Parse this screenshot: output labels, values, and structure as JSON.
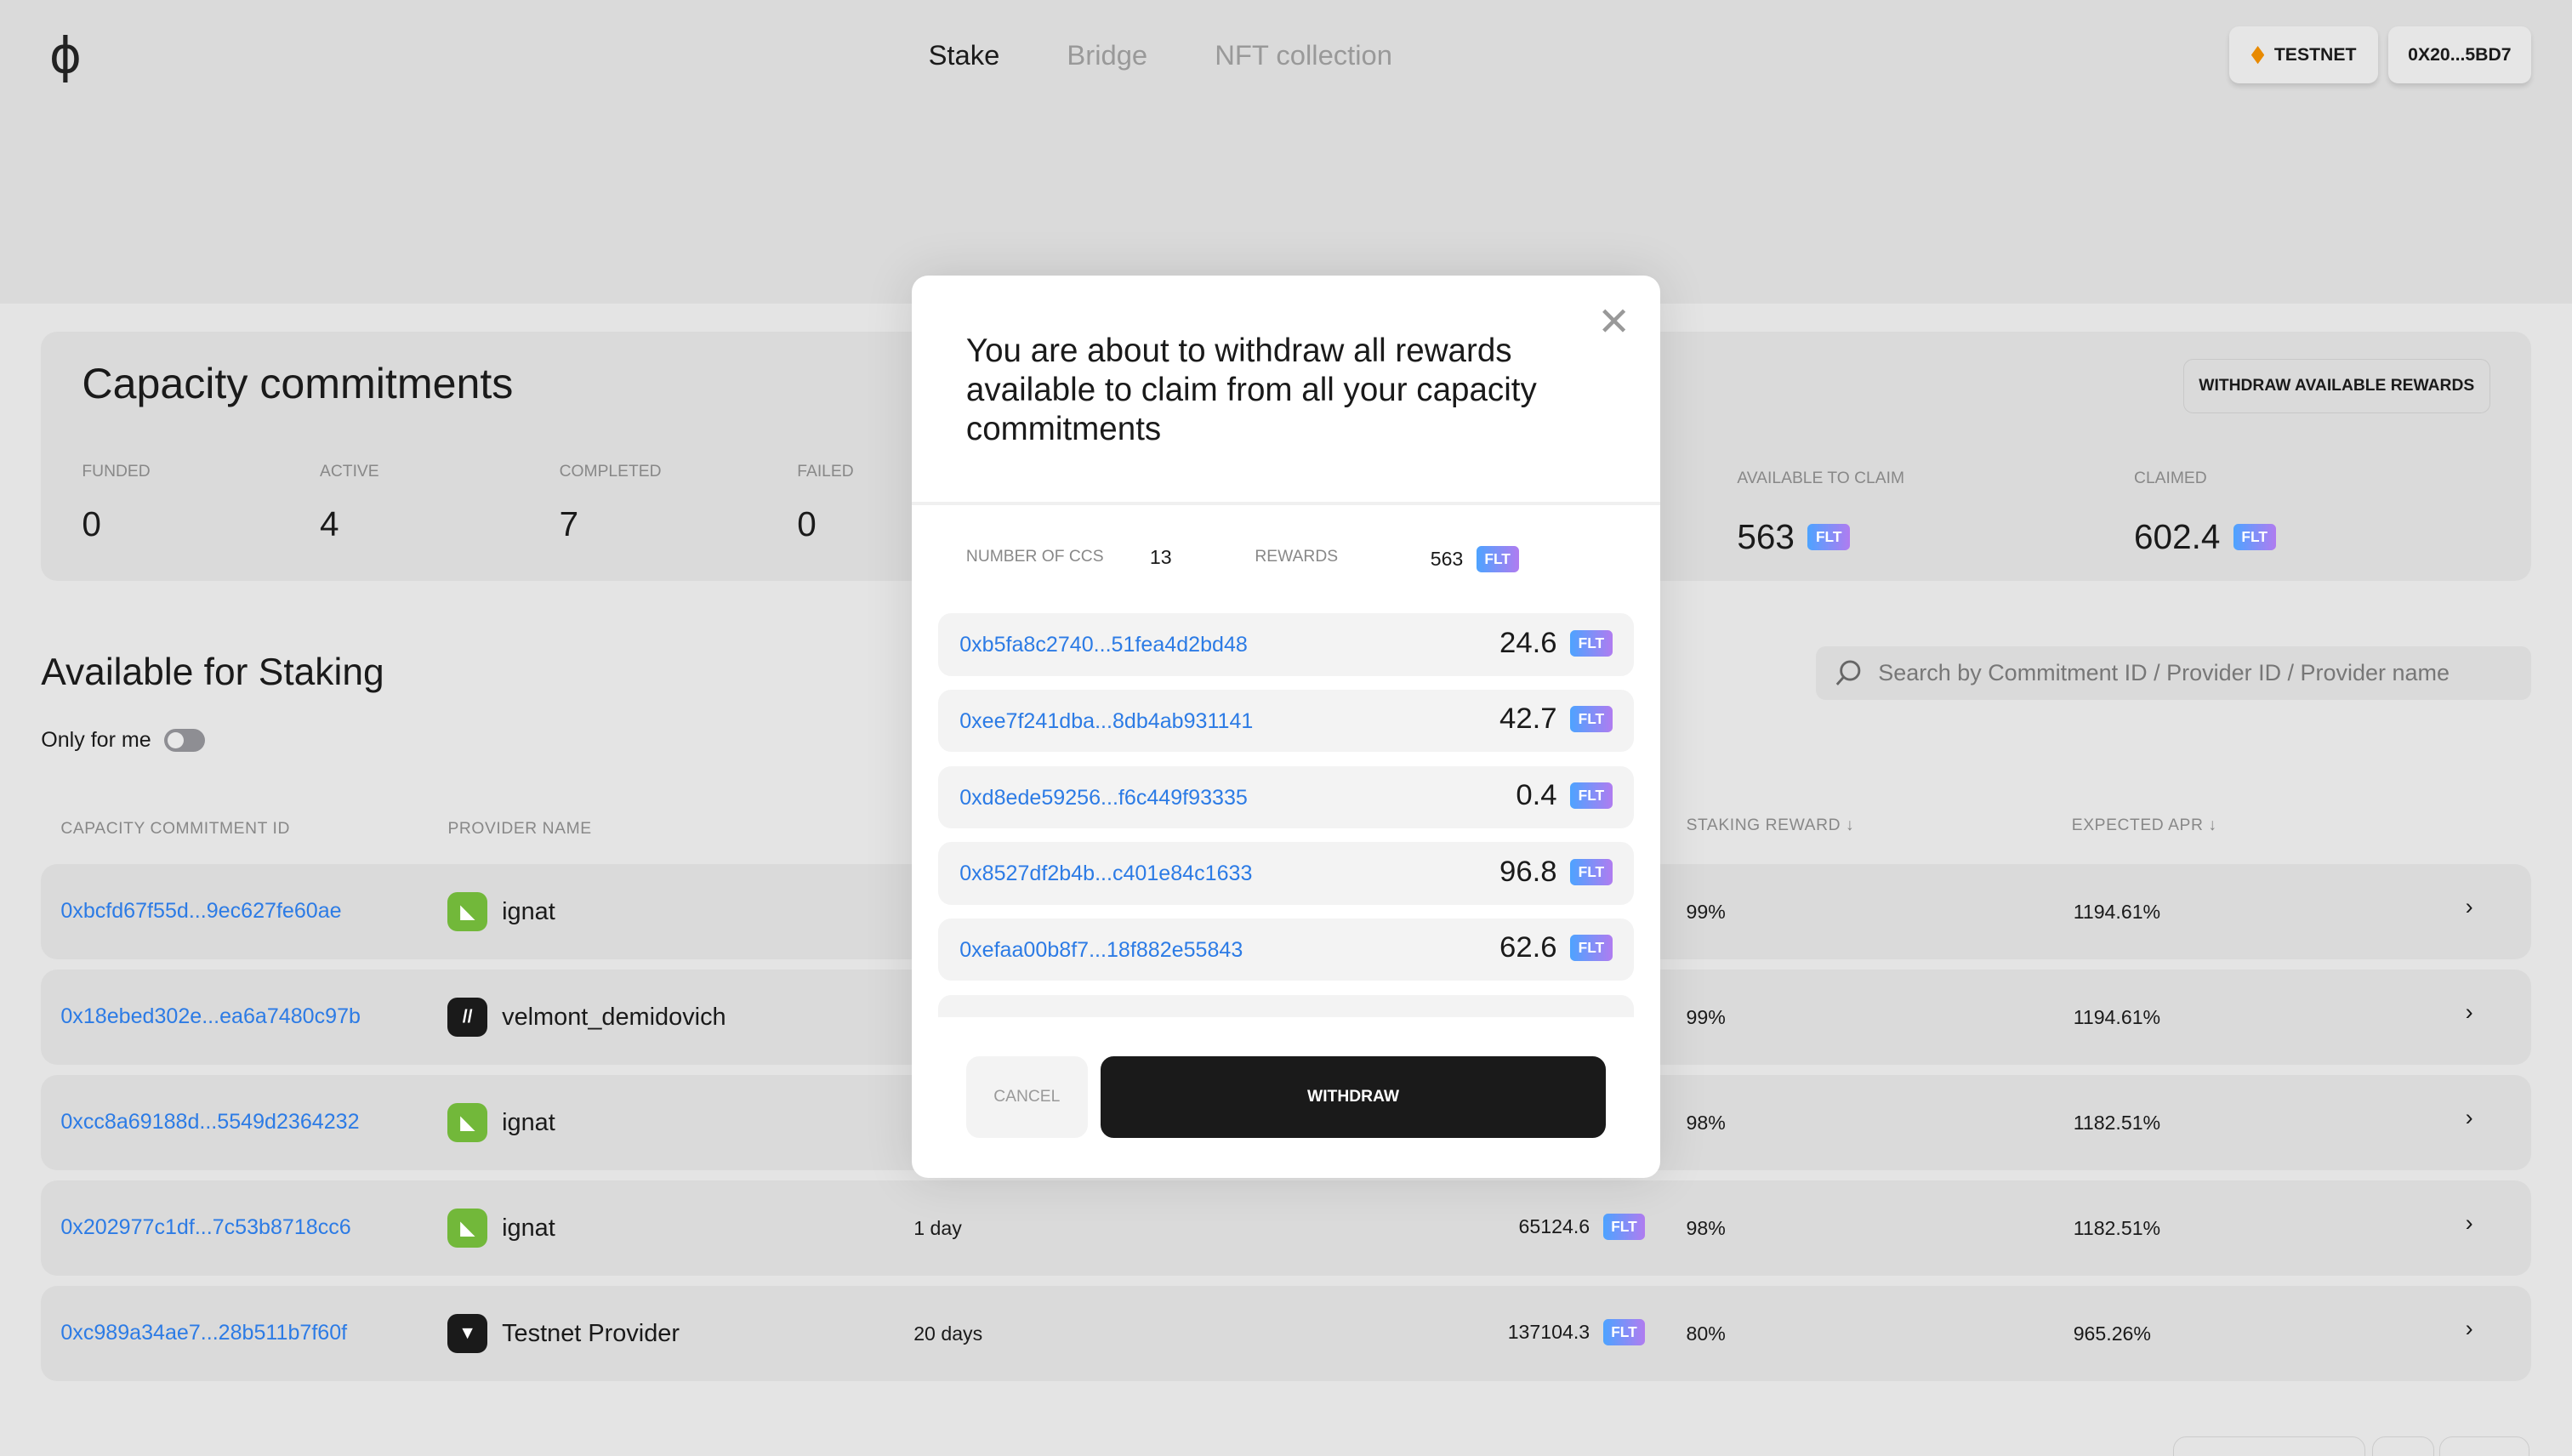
{
  "header": {
    "logo": "ϕ",
    "nav": [
      {
        "label": "Stake",
        "active": true
      },
      {
        "label": "Bridge",
        "active": false
      },
      {
        "label": "NFT collection",
        "active": false
      }
    ],
    "network": "TESTNET",
    "wallet": "0X20...5BD7",
    "network_color": "#e88a00"
  },
  "capacity": {
    "title": "Capacity commitments",
    "withdraw_label": "WITHDRAW AVAILABLE REWARDS",
    "stats": [
      {
        "label": "FUNDED",
        "value": "0"
      },
      {
        "label": "ACTIVE",
        "value": "4"
      },
      {
        "label": "COMPLETED",
        "value": "7"
      },
      {
        "label": "FAILED",
        "value": "0"
      }
    ],
    "available_label": "AVAILABLE TO CLAIM",
    "available_value": "563",
    "claimed_label": "CLAIMED",
    "claimed_value": "602.4",
    "token": "FLT"
  },
  "staking": {
    "title": "Available for Staking",
    "toggle_label": "Only for me",
    "toggle_on": false,
    "search_placeholder": "Search by Commitment ID / Provider ID / Provider name",
    "columns": [
      "CAPACITY COMMITMENT ID",
      "PROVIDER NAME",
      "STAKING REWARD ↓",
      "EXPECTED APR ↓"
    ],
    "rows": [
      {
        "id": "0xbcfd67f55d...9ec627fe60ae",
        "provider": "ignat",
        "avatar": "green",
        "duration": "",
        "staked": "",
        "reward": "99%",
        "apr": "1194.61%"
      },
      {
        "id": "0x18ebed302e...ea6a7480c97b",
        "provider": "velmont_demidovich",
        "avatar": "black",
        "duration": "",
        "staked": "",
        "reward": "99%",
        "apr": "1194.61%"
      },
      {
        "id": "0xcc8a69188d...5549d2364232",
        "provider": "ignat",
        "avatar": "green",
        "duration": "",
        "staked": "",
        "reward": "98%",
        "apr": "1182.51%"
      },
      {
        "id": "0x202977c1df...7c53b8718cc6",
        "provider": "ignat",
        "avatar": "green",
        "duration": "1 day",
        "staked": "65124.6",
        "reward": "98%",
        "apr": "1182.51%"
      },
      {
        "id": "0xc989a34ae7...28b511b7f60f",
        "provider": "Testnet Provider",
        "avatar": "black-v",
        "duration": "20 days",
        "staked": "137104.3",
        "reward": "80%",
        "apr": "965.26%"
      }
    ]
  },
  "modal": {
    "title": "You are about to withdraw all rewards available to claim from all your capacity commitments",
    "ccs_label": "NUMBER OF CCS",
    "ccs_value": "13",
    "rewards_label": "REWARDS",
    "rewards_value": "563",
    "token": "FLT",
    "items": [
      {
        "id": "0xb5fa8c2740...51fea4d2bd48",
        "amount": "24.6"
      },
      {
        "id": "0xee7f241dba...8db4ab931141",
        "amount": "42.7"
      },
      {
        "id": "0xd8ede59256...f6c449f93335",
        "amount": "0.4"
      },
      {
        "id": "0x8527df2b4b...c401e84c1633",
        "amount": "96.8"
      },
      {
        "id": "0xefaa00b8f7...18f882e55843",
        "amount": "62.6"
      }
    ],
    "cancel_label": "CANCEL",
    "withdraw_label": "WITHDRAW"
  }
}
